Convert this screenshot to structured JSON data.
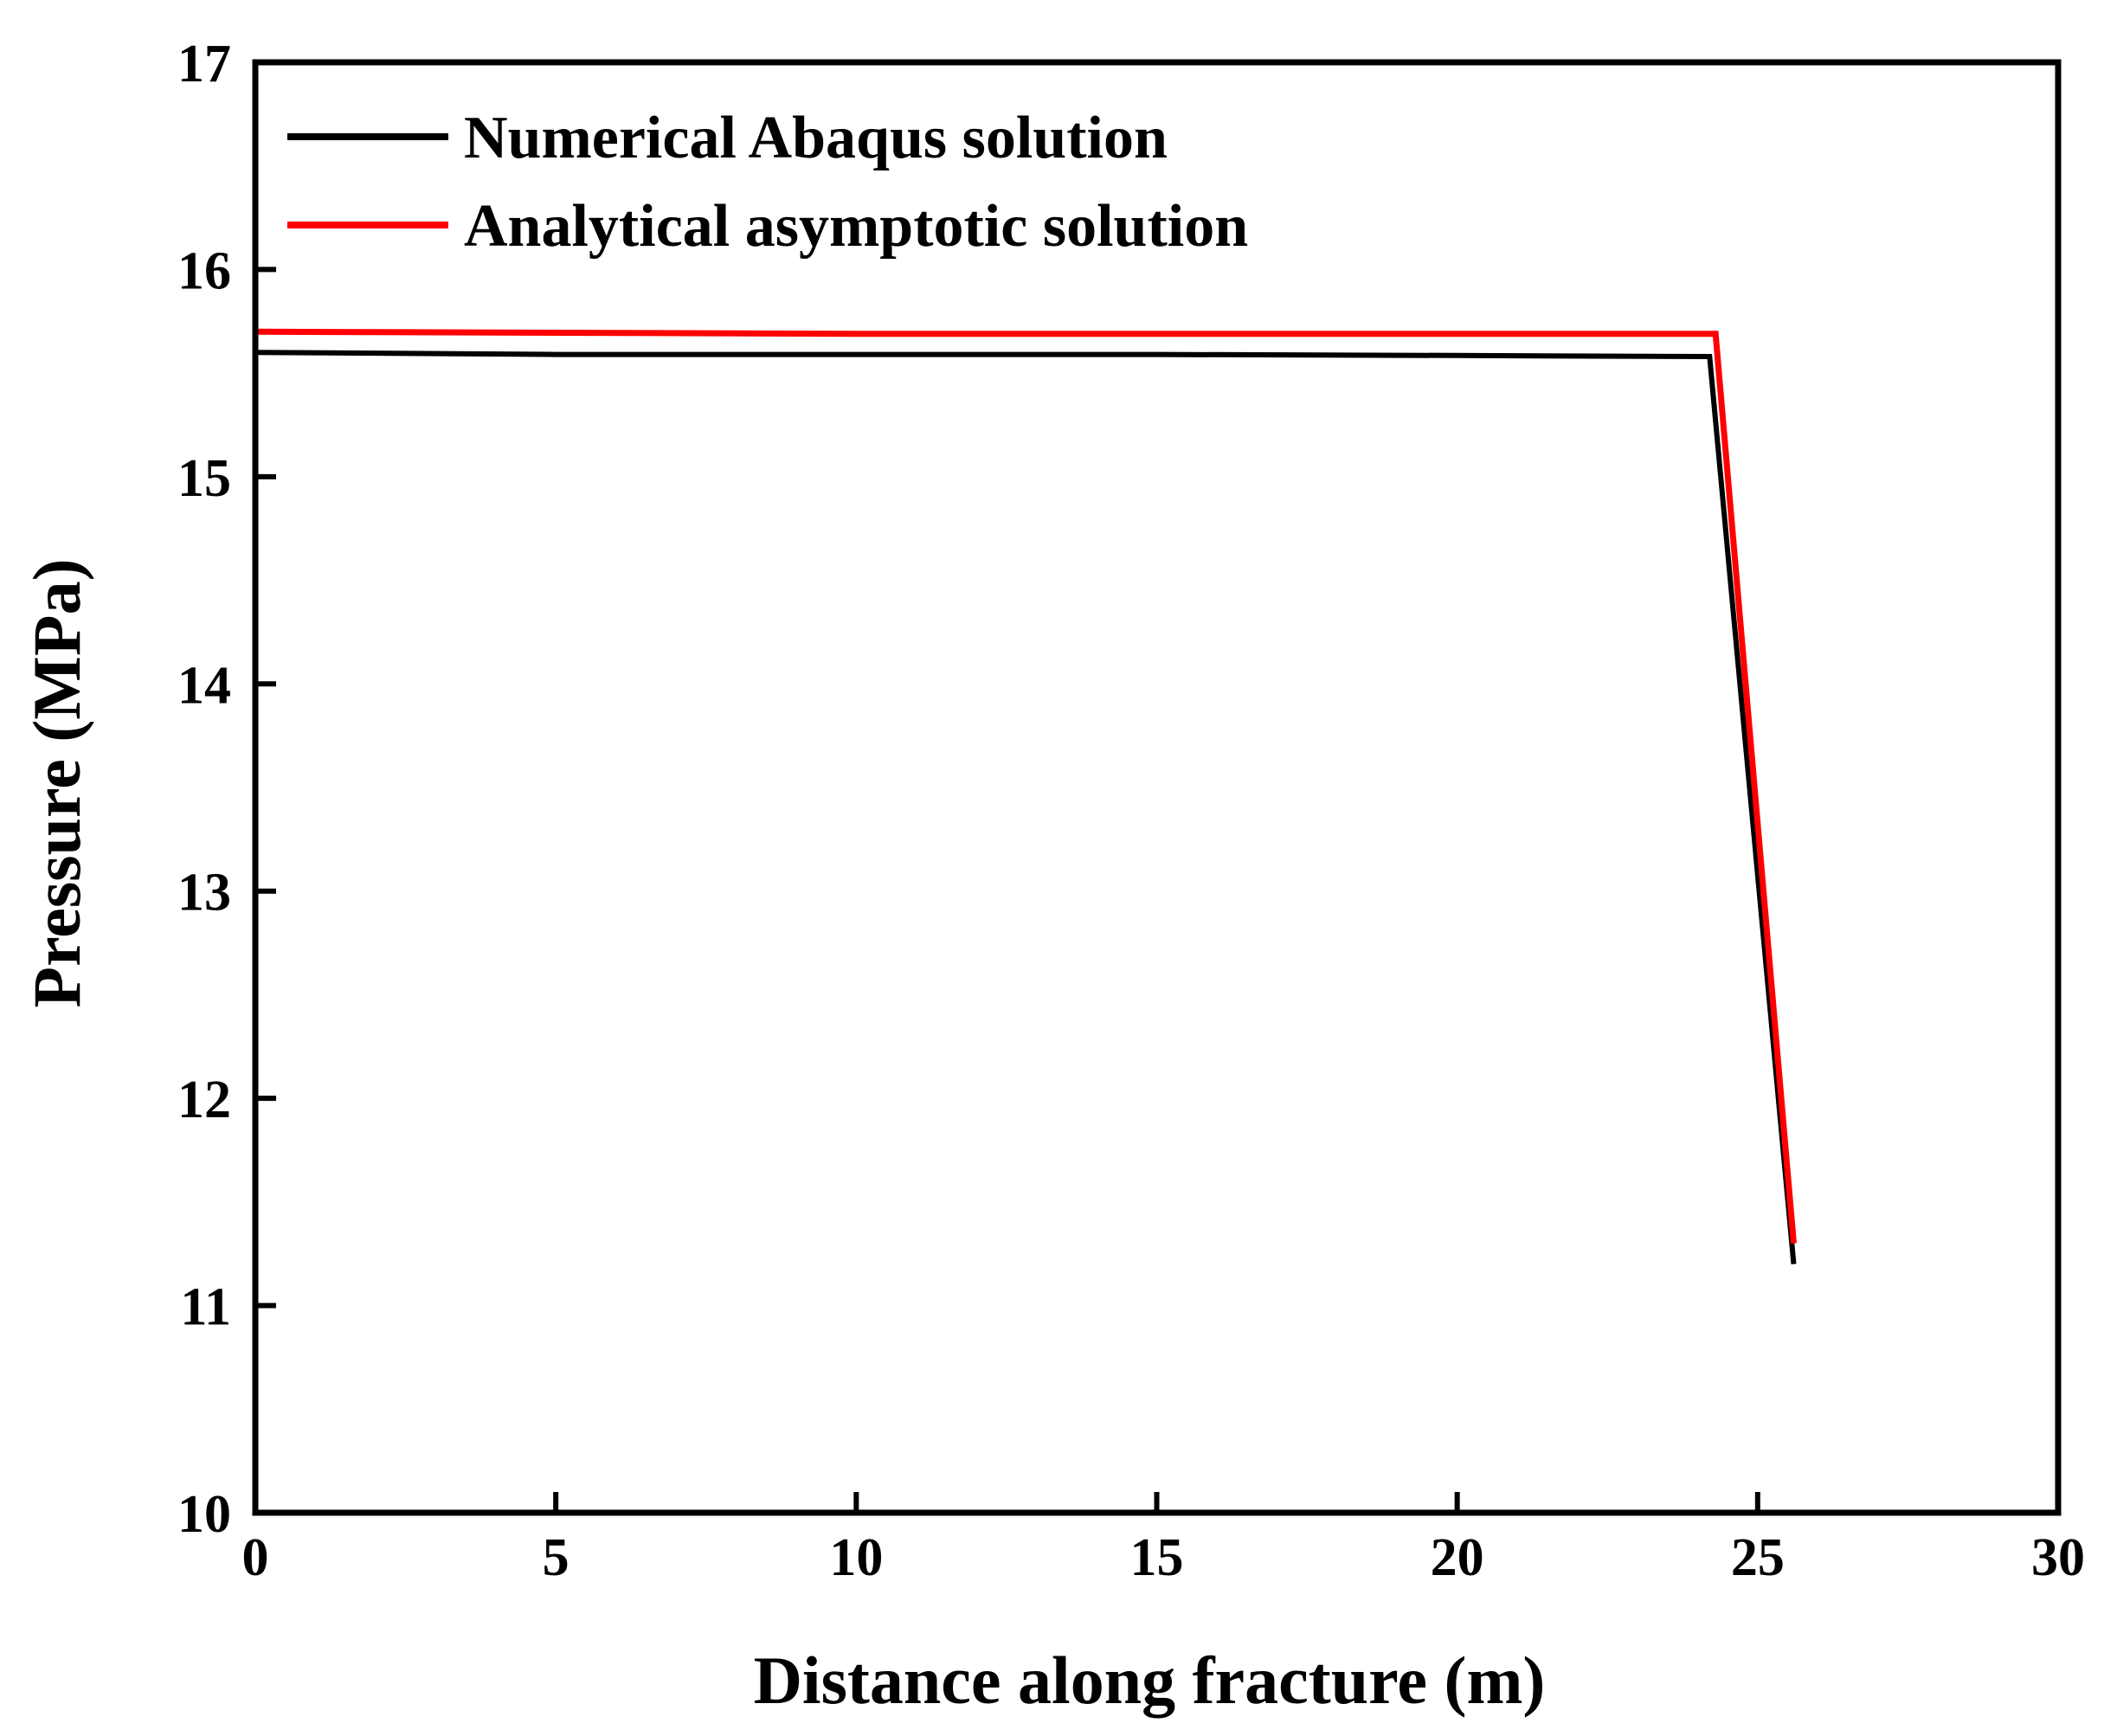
{
  "chart_data": {
    "type": "line",
    "title": "",
    "xlabel": "Distance along fracture (m)",
    "ylabel": "Pressure (MPa)",
    "xlim": [
      0,
      30
    ],
    "ylim": [
      10,
      17
    ],
    "xticks": [
      0,
      5,
      10,
      15,
      20,
      25,
      30
    ],
    "yticks": [
      10,
      11,
      12,
      13,
      14,
      15,
      16,
      17
    ],
    "xtick_labels": [
      "0",
      "5",
      "10",
      "15",
      "20",
      "25",
      "30"
    ],
    "ytick_labels": [
      "10",
      "11",
      "12",
      "13",
      "14",
      "15",
      "16",
      "17"
    ],
    "grid": false,
    "legend_position": "top-left",
    "series": [
      {
        "name": "Numerical Abaqus solution",
        "color": "#000000",
        "x": [
          0,
          5,
          10,
          15,
          20,
          24.2,
          25.6
        ],
        "y": [
          15.6,
          15.59,
          15.59,
          15.59,
          15.585,
          15.58,
          11.2
        ]
      },
      {
        "name": "Analytical asymptotic solution",
        "color": "#ff0000",
        "x": [
          0,
          5,
          10,
          15,
          20,
          24.3,
          25.6
        ],
        "y": [
          15.7,
          15.695,
          15.69,
          15.69,
          15.69,
          15.69,
          11.3
        ]
      }
    ]
  }
}
